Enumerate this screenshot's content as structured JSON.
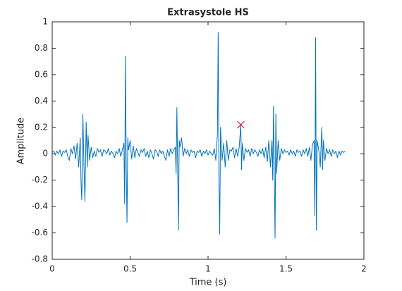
{
  "chart_data": {
    "type": "line",
    "title": "Extrasystole HS",
    "x_label": "Time (s)",
    "y_label": "Amplitude",
    "color": "#0072bd",
    "x": [
      0,
      0.01,
      0.02,
      0.03,
      0.04,
      0.05,
      0.06,
      0.07,
      0.08,
      0.09,
      0.1,
      0.11,
      0.12,
      0.13,
      0.14,
      0.15,
      0.16,
      0.17,
      0.18,
      0.185,
      0.19,
      0.197,
      0.203,
      0.21,
      0.218,
      0.225,
      0.23,
      0.24,
      0.25,
      0.26,
      0.27,
      0.28,
      0.29,
      0.3,
      0.31,
      0.32,
      0.33,
      0.34,
      0.35,
      0.36,
      0.37,
      0.38,
      0.39,
      0.4,
      0.41,
      0.42,
      0.43,
      0.44,
      0.45,
      0.46,
      0.465,
      0.47,
      0.475,
      0.48,
      0.485,
      0.49,
      0.5,
      0.51,
      0.52,
      0.53,
      0.54,
      0.55,
      0.56,
      0.57,
      0.58,
      0.59,
      0.6,
      0.61,
      0.62,
      0.63,
      0.64,
      0.65,
      0.66,
      0.67,
      0.68,
      0.69,
      0.7,
      0.71,
      0.72,
      0.73,
      0.74,
      0.75,
      0.76,
      0.77,
      0.78,
      0.79,
      0.795,
      0.8,
      0.805,
      0.81,
      0.815,
      0.82,
      0.83,
      0.84,
      0.85,
      0.86,
      0.87,
      0.88,
      0.89,
      0.9,
      0.91,
      0.92,
      0.93,
      0.94,
      0.95,
      0.96,
      0.97,
      0.98,
      0.99,
      1.0,
      1.01,
      1.02,
      1.03,
      1.04,
      1.05,
      1.06,
      1.065,
      1.07,
      1.075,
      1.08,
      1.09,
      1.1,
      1.11,
      1.12,
      1.13,
      1.14,
      1.15,
      1.16,
      1.17,
      1.18,
      1.19,
      1.2,
      1.21,
      1.215,
      1.22,
      1.23,
      1.24,
      1.25,
      1.26,
      1.27,
      1.28,
      1.29,
      1.3,
      1.31,
      1.32,
      1.33,
      1.34,
      1.35,
      1.36,
      1.37,
      1.38,
      1.39,
      1.4,
      1.41,
      1.415,
      1.42,
      1.43,
      1.435,
      1.44,
      1.45,
      1.46,
      1.47,
      1.48,
      1.49,
      1.5,
      1.51,
      1.52,
      1.53,
      1.54,
      1.55,
      1.56,
      1.57,
      1.58,
      1.59,
      1.6,
      1.61,
      1.62,
      1.63,
      1.64,
      1.65,
      1.66,
      1.67,
      1.68,
      1.685,
      1.69,
      1.695,
      1.7,
      1.71,
      1.72,
      1.73,
      1.735,
      1.74,
      1.75,
      1.76,
      1.77,
      1.78,
      1.79,
      1.8,
      1.81,
      1.82,
      1.83,
      1.84,
      1.85,
      1.86,
      1.87,
      1.88
    ],
    "values": [
      0.01,
      0.02,
      -0.01,
      0.02,
      0.0,
      0.03,
      -0.02,
      0.02,
      0.01,
      0.03,
      -0.02,
      -0.05,
      0.04,
      0.0,
      0.06,
      -0.04,
      0.08,
      -0.1,
      0.12,
      -0.22,
      -0.35,
      0.3,
      -0.05,
      -0.36,
      0.24,
      -0.1,
      0.14,
      -0.05,
      0.05,
      -0.03,
      0.02,
      -0.02,
      0.04,
      0.01,
      0.03,
      -0.02,
      0.03,
      0.02,
      0.0,
      0.04,
      -0.01,
      0.02,
      0.0,
      -0.03,
      0.02,
      0.0,
      0.04,
      -0.02,
      0.03,
      0.08,
      -0.38,
      0.74,
      -0.1,
      -0.52,
      0.12,
      0.03,
      0.1,
      -0.04,
      0.06,
      -0.03,
      0.04,
      0.01,
      -0.02,
      0.03,
      0.01,
      0.04,
      -0.02,
      0.02,
      -0.03,
      0.03,
      0.0,
      -0.04,
      0.03,
      0.02,
      -0.02,
      0.03,
      0.0,
      0.02,
      -0.02,
      -0.05,
      0.03,
      -0.02,
      0.04,
      0.0,
      0.03,
      0.05,
      -0.15,
      0.35,
      -0.1,
      -0.58,
      0.1,
      0.05,
      0.12,
      -0.02,
      0.04,
      0.0,
      0.03,
      -0.02,
      0.03,
      0.01,
      0.02,
      -0.03,
      0.02,
      0.01,
      0.03,
      -0.02,
      0.02,
      0.0,
      0.03,
      -0.01,
      0.02,
      0.0,
      -0.01,
      0.04,
      -0.05,
      0.15,
      0.92,
      -0.2,
      -0.61,
      0.2,
      -0.05,
      0.08,
      -0.1,
      0.1,
      -0.05,
      0.03,
      0.02,
      0.05,
      -0.03,
      0.04,
      -0.02,
      0.05,
      0.22,
      -0.12,
      0.08,
      -0.05,
      0.04,
      0.01,
      0.03,
      -0.02,
      0.04,
      0.0,
      0.03,
      0.01,
      -0.02,
      0.03,
      0.0,
      0.04,
      -0.03,
      0.05,
      -0.06,
      0.1,
      -0.1,
      0.1,
      -0.2,
      0.36,
      -0.64,
      0.3,
      -0.15,
      0.1,
      -0.05,
      0.04,
      0.0,
      0.03,
      0.01,
      0.02,
      -0.01,
      0.03,
      0.0,
      0.02,
      -0.02,
      0.03,
      0.01,
      0.02,
      -0.02,
      0.03,
      0.0,
      0.04,
      -0.02,
      0.05,
      -0.05,
      0.07,
      0.1,
      -0.47,
      0.88,
      -0.58,
      0.1,
      0.03,
      -0.1,
      0.2,
      -0.12,
      0.1,
      -0.05,
      0.04,
      0.0,
      0.03,
      -0.02,
      0.03,
      0.0,
      0.02,
      -0.03,
      0.02,
      -0.01,
      0.02,
      0.01,
      0.02
    ],
    "marker": {
      "x": [
        1.21
      ],
      "values": [
        0.22
      ],
      "color": "#ff0000"
    },
    "xlim": [
      0,
      2
    ],
    "xticks": [
      0,
      0.5,
      1,
      1.5,
      2
    ],
    "ylim": [
      -0.8,
      1
    ],
    "yticks": [
      -0.8,
      -0.6,
      -0.4,
      -0.2,
      0,
      0.2,
      0.4,
      0.6,
      0.8,
      1
    ]
  }
}
